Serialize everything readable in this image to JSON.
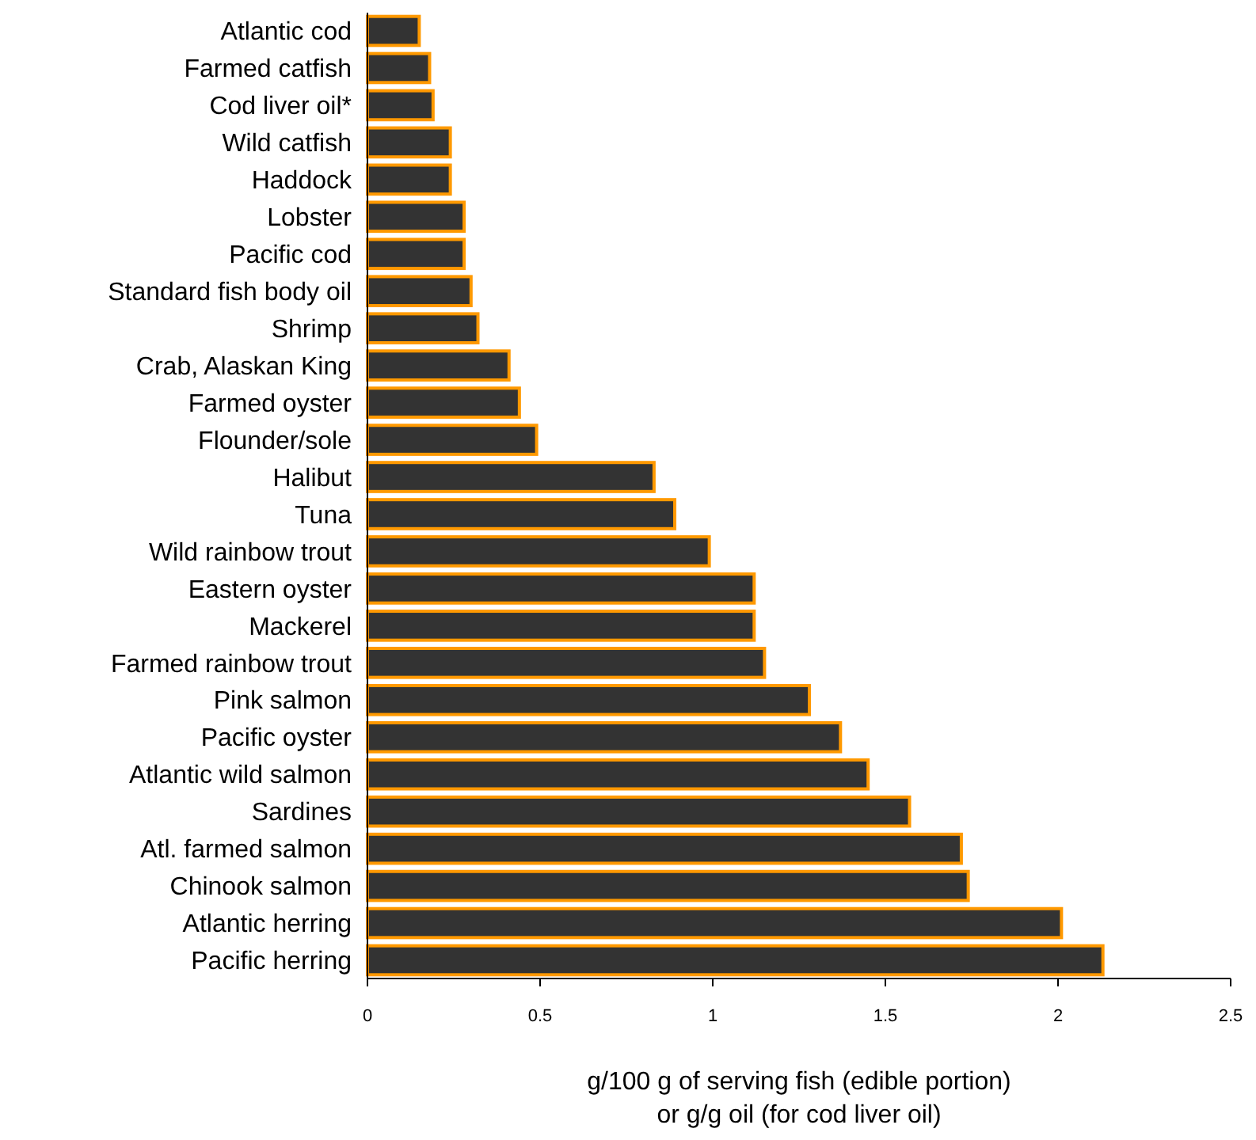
{
  "chart_data": {
    "type": "bar",
    "orientation": "horizontal",
    "xlabel": "g/100 g of serving fish (edible portion)\nor g/g oil (for cod liver oil)",
    "categories": [
      "Atlantic cod",
      "Farmed catfish",
      "Cod liver oil*",
      "Wild catfish",
      "Haddock",
      "Lobster",
      "Pacific cod",
      "Standard fish body oil",
      "Shrimp",
      "Crab, Alaskan King",
      "Farmed oyster",
      "Flounder/sole",
      "Halibut",
      "Tuna",
      "Wild rainbow trout",
      "Eastern oyster",
      "Mackerel",
      "Farmed rainbow trout",
      "Pink salmon",
      "Pacific oyster",
      "Atlantic wild salmon",
      "Sardines",
      "Atl. farmed salmon",
      "Chinook salmon",
      "Atlantic herring",
      "Pacific herring"
    ],
    "values": [
      0.15,
      0.18,
      0.19,
      0.24,
      0.24,
      0.28,
      0.28,
      0.3,
      0.32,
      0.41,
      0.44,
      0.49,
      0.83,
      0.89,
      0.99,
      1.12,
      1.12,
      1.15,
      1.28,
      1.37,
      1.45,
      1.57,
      1.72,
      1.74,
      2.01,
      2.13
    ],
    "color": "#333333",
    "xlim": [
      0,
      2.5
    ],
    "xticks": [
      0,
      0.5,
      1,
      1.5,
      2,
      2.5
    ],
    "grid": false
  }
}
